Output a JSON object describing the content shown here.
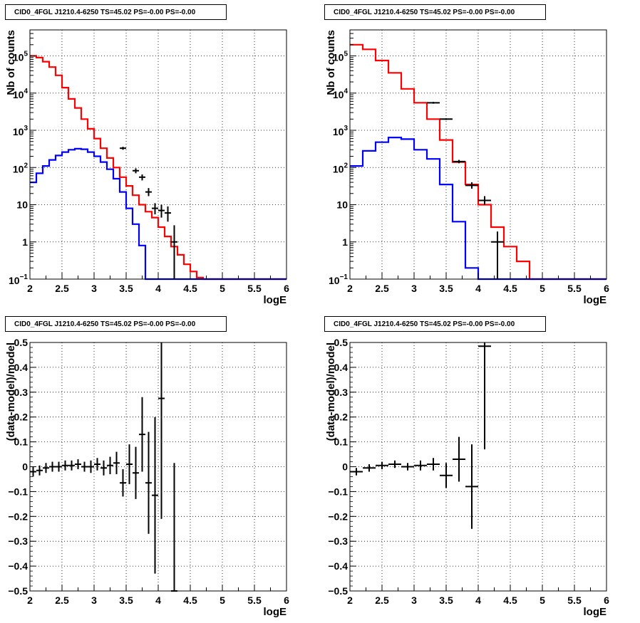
{
  "panel_title": "CID0_4FGL J1210.4-6250 TS=45.02 PS=-0.00 PS=-0.00",
  "colors": {
    "data": "#000000",
    "total_model": "#ff0000",
    "source_model": "#0000ff"
  },
  "chart_data": [
    {
      "type": "histogram",
      "title": "CID0_4FGL J1210.4-6250 TS=45.02 PS=-0.00 PS=-0.00",
      "xlabel": "logE",
      "ylabel": "Nb of counts",
      "xlim": [
        2,
        6
      ],
      "ylim": [
        0.1,
        500000
      ],
      "yscale": "log",
      "grid": true,
      "xticks": [
        "2",
        "2.5",
        "3",
        "3.5",
        "4",
        "4.5",
        "5",
        "5.5",
        "6"
      ],
      "yticks": [
        {
          "value": 0.1,
          "label": "10",
          "exp": "−1"
        },
        {
          "value": 1,
          "label": "1",
          "exp": ""
        },
        {
          "value": 10,
          "label": "10",
          "exp": ""
        },
        {
          "value": 100,
          "label": "10",
          "exp": "2"
        },
        {
          "value": 1000,
          "label": "10",
          "exp": "3"
        },
        {
          "value": 10000,
          "label": "10",
          "exp": "4"
        },
        {
          "value": 100000,
          "label": "10",
          "exp": "5"
        }
      ],
      "bin_edges_from": 2,
      "bin_width": 0.1,
      "series": [
        {
          "role": "total_model",
          "values": [
            100000,
            90000,
            70000,
            50000,
            30000,
            14000,
            7000,
            4000,
            2000,
            1100,
            600,
            330,
            180,
            100,
            55,
            32,
            18,
            10,
            6.5,
            4.5,
            2.5,
            1.4,
            0.75,
            0.45,
            0.25,
            0.16,
            0.11,
            0.1,
            0.1,
            0.1,
            0.1,
            0.1,
            0.1,
            0.1,
            0.1,
            0.1,
            0.1,
            0.1,
            0.1,
            0.1
          ]
        },
        {
          "role": "source_model",
          "values": [
            40,
            70,
            110,
            160,
            210,
            260,
            300,
            320,
            310,
            260,
            200,
            140,
            90,
            50,
            22,
            8,
            3,
            0.8,
            0.1,
            0.1,
            0.1,
            0.1,
            0.1,
            0.1,
            0.1,
            0.1,
            0.1,
            0.1,
            0.1,
            0.1,
            0.1,
            0.1,
            0.1,
            0.1,
            0.1,
            0.1,
            0.1,
            0.1,
            0.1,
            0.1
          ]
        }
      ],
      "data_points": [
        {
          "x": 3.45,
          "y": 330,
          "xerr": 0.05,
          "ylo": 300,
          "yhi": 360
        },
        {
          "x": 3.65,
          "y": 82,
          "xerr": 0.05,
          "ylo": 70,
          "yhi": 95
        },
        {
          "x": 3.75,
          "y": 55,
          "xerr": 0.05,
          "ylo": 45,
          "yhi": 65
        },
        {
          "x": 3.85,
          "y": 22,
          "xerr": 0.05,
          "ylo": 17,
          "yhi": 28
        },
        {
          "x": 3.95,
          "y": 8,
          "xerr": 0.05,
          "ylo": 5.5,
          "yhi": 11
        },
        {
          "x": 4.05,
          "y": 7,
          "xerr": 0.05,
          "ylo": 4.5,
          "yhi": 10
        },
        {
          "x": 4.15,
          "y": 6,
          "xerr": 0.05,
          "ylo": 3.5,
          "yhi": 9
        },
        {
          "x": 4.25,
          "y": 1,
          "xerr": 0.05,
          "ylo": 0.1,
          "yhi": 2.8
        }
      ]
    },
    {
      "type": "histogram",
      "title": "CID0_4FGL J1210.4-6250 TS=45.02 PS=-0.00 PS=-0.00",
      "xlabel": "logE",
      "ylabel": "Nb of counts",
      "xlim": [
        2,
        6
      ],
      "ylim": [
        0.1,
        500000
      ],
      "yscale": "log",
      "grid": true,
      "xticks": [
        "2",
        "2.5",
        "3",
        "3.5",
        "4",
        "4.5",
        "5",
        "5.5",
        "6"
      ],
      "yticks": [
        {
          "value": 0.1,
          "label": "10",
          "exp": "−1"
        },
        {
          "value": 1,
          "label": "1",
          "exp": ""
        },
        {
          "value": 10,
          "label": "10",
          "exp": ""
        },
        {
          "value": 100,
          "label": "10",
          "exp": "2"
        },
        {
          "value": 1000,
          "label": "10",
          "exp": "3"
        },
        {
          "value": 10000,
          "label": "10",
          "exp": "4"
        },
        {
          "value": 100000,
          "label": "10",
          "exp": "5"
        }
      ],
      "bin_edges_from": 2,
      "bin_width": 0.2,
      "series": [
        {
          "role": "total_model",
          "values": [
            200000,
            150000,
            75000,
            35000,
            13000,
            5500,
            2000,
            550,
            140,
            35,
            10,
            2.5,
            0.75,
            0.3,
            0.1,
            0.1,
            0.1,
            0.1,
            0.1,
            0.1
          ]
        },
        {
          "role": "source_model",
          "values": [
            110,
            280,
            480,
            640,
            580,
            300,
            170,
            35,
            3.5,
            0.2,
            0.1,
            0.1,
            0.1,
            0.1,
            0.1,
            0.1,
            0.1,
            0.1,
            0.1,
            0.1
          ]
        }
      ],
      "data_points": [
        {
          "x": 3.3,
          "y": 5500,
          "xerr": 0.1,
          "ylo": 5200,
          "yhi": 5800
        },
        {
          "x": 3.5,
          "y": 2000,
          "xerr": 0.1,
          "ylo": 1900,
          "yhi": 2100
        },
        {
          "x": 3.7,
          "y": 145,
          "xerr": 0.1,
          "ylo": 130,
          "yhi": 160
        },
        {
          "x": 3.9,
          "y": 33,
          "xerr": 0.1,
          "ylo": 27,
          "yhi": 40
        },
        {
          "x": 4.1,
          "y": 13,
          "xerr": 0.1,
          "ylo": 10,
          "yhi": 17
        },
        {
          "x": 4.3,
          "y": 1,
          "xerr": 0.1,
          "ylo": 0.1,
          "yhi": 1.9
        }
      ]
    },
    {
      "type": "scatter",
      "title": "CID0_4FGL J1210.4-6250 TS=45.02 PS=-0.00 PS=-0.00",
      "xlabel": "logE",
      "ylabel": "(data-model)/model",
      "xlim": [
        2,
        6
      ],
      "ylim": [
        -0.5,
        0.5
      ],
      "yscale": "linear",
      "grid": true,
      "xticks": [
        "2",
        "2.5",
        "3",
        "3.5",
        "4",
        "4.5",
        "5",
        "5.5",
        "6"
      ],
      "yticks": [
        {
          "value": -0.5,
          "label": "−0.5"
        },
        {
          "value": -0.4,
          "label": "−0.4"
        },
        {
          "value": -0.3,
          "label": "−0.3"
        },
        {
          "value": -0.2,
          "label": "−0.2"
        },
        {
          "value": -0.1,
          "label": "−0.1"
        },
        {
          "value": 0,
          "label": "0"
        },
        {
          "value": 0.1,
          "label": "0.1"
        },
        {
          "value": 0.2,
          "label": "0.2"
        },
        {
          "value": 0.3,
          "label": "0.3"
        },
        {
          "value": 0.4,
          "label": "0.4"
        },
        {
          "value": 0.5,
          "label": "0.5"
        }
      ],
      "data_points": [
        {
          "x": 2.05,
          "y": -0.02,
          "xerr": 0.05,
          "ylo": -0.04,
          "yhi": 0.0
        },
        {
          "x": 2.15,
          "y": -0.015,
          "xerr": 0.05,
          "ylo": -0.035,
          "yhi": 0.005
        },
        {
          "x": 2.25,
          "y": -0.005,
          "xerr": 0.05,
          "ylo": -0.025,
          "yhi": 0.015
        },
        {
          "x": 2.35,
          "y": 0.0,
          "xerr": 0.05,
          "ylo": -0.02,
          "yhi": 0.02
        },
        {
          "x": 2.45,
          "y": 0.0,
          "xerr": 0.05,
          "ylo": -0.02,
          "yhi": 0.02
        },
        {
          "x": 2.55,
          "y": 0.005,
          "xerr": 0.05,
          "ylo": -0.015,
          "yhi": 0.025
        },
        {
          "x": 2.65,
          "y": 0.005,
          "xerr": 0.05,
          "ylo": -0.015,
          "yhi": 0.025
        },
        {
          "x": 2.75,
          "y": 0.01,
          "xerr": 0.05,
          "ylo": -0.01,
          "yhi": 0.03
        },
        {
          "x": 2.85,
          "y": 0.0,
          "xerr": 0.05,
          "ylo": -0.02,
          "yhi": 0.02
        },
        {
          "x": 2.95,
          "y": 0.0,
          "xerr": 0.05,
          "ylo": -0.025,
          "yhi": 0.025
        },
        {
          "x": 3.05,
          "y": 0.01,
          "xerr": 0.05,
          "ylo": -0.015,
          "yhi": 0.035
        },
        {
          "x": 3.15,
          "y": -0.005,
          "xerr": 0.05,
          "ylo": -0.035,
          "yhi": 0.025
        },
        {
          "x": 3.25,
          "y": 0.005,
          "xerr": 0.05,
          "ylo": -0.03,
          "yhi": 0.04
        },
        {
          "x": 3.35,
          "y": 0.015,
          "xerr": 0.05,
          "ylo": -0.03,
          "yhi": 0.06
        },
        {
          "x": 3.45,
          "y": -0.065,
          "xerr": 0.05,
          "ylo": -0.12,
          "yhi": -0.01
        },
        {
          "x": 3.55,
          "y": 0.01,
          "xerr": 0.05,
          "ylo": -0.07,
          "yhi": 0.09
        },
        {
          "x": 3.65,
          "y": -0.025,
          "xerr": 0.05,
          "ylo": -0.13,
          "yhi": 0.08
        },
        {
          "x": 3.75,
          "y": 0.13,
          "xerr": 0.05,
          "ylo": -0.02,
          "yhi": 0.28
        },
        {
          "x": 3.85,
          "y": -0.065,
          "xerr": 0.05,
          "ylo": -0.27,
          "yhi": 0.14
        },
        {
          "x": 3.95,
          "y": -0.115,
          "xerr": 0.05,
          "ylo": -0.43,
          "yhi": 0.2
        },
        {
          "x": 4.05,
          "y": 0.275,
          "xerr": 0.05,
          "ylo": -0.21,
          "yhi": 0.5
        },
        {
          "x": 4.25,
          "y": -0.5,
          "xerr": 0.05,
          "ylo": -0.5,
          "yhi": 0.015
        }
      ]
    },
    {
      "type": "scatter",
      "title": "CID0_4FGL J1210.4-6250 TS=45.02 PS=-0.00 PS=-0.00",
      "xlabel": "logE",
      "ylabel": "(data-model)/model",
      "xlim": [
        2,
        6
      ],
      "ylim": [
        -0.5,
        0.5
      ],
      "yscale": "linear",
      "grid": true,
      "xticks": [
        "2",
        "2.5",
        "3",
        "3.5",
        "4",
        "4.5",
        "5",
        "5.5",
        "6"
      ],
      "yticks": [
        {
          "value": -0.5,
          "label": "−0.5"
        },
        {
          "value": -0.4,
          "label": "−0.4"
        },
        {
          "value": -0.3,
          "label": "−0.3"
        },
        {
          "value": -0.2,
          "label": "−0.2"
        },
        {
          "value": -0.1,
          "label": "−0.1"
        },
        {
          "value": 0,
          "label": "0"
        },
        {
          "value": 0.1,
          "label": "0.1"
        },
        {
          "value": 0.2,
          "label": "0.2"
        },
        {
          "value": 0.3,
          "label": "0.3"
        },
        {
          "value": 0.4,
          "label": "0.4"
        },
        {
          "value": 0.5,
          "label": "0.5"
        }
      ],
      "data_points": [
        {
          "x": 2.1,
          "y": -0.02,
          "xerr": 0.1,
          "ylo": -0.035,
          "yhi": -0.005
        },
        {
          "x": 2.3,
          "y": -0.005,
          "xerr": 0.1,
          "ylo": -0.02,
          "yhi": 0.01
        },
        {
          "x": 2.5,
          "y": 0.005,
          "xerr": 0.1,
          "ylo": -0.01,
          "yhi": 0.02
        },
        {
          "x": 2.7,
          "y": 0.01,
          "xerr": 0.1,
          "ylo": -0.005,
          "yhi": 0.025
        },
        {
          "x": 2.9,
          "y": 0.0,
          "xerr": 0.1,
          "ylo": -0.015,
          "yhi": 0.015
        },
        {
          "x": 3.1,
          "y": 0.005,
          "xerr": 0.1,
          "ylo": -0.015,
          "yhi": 0.025
        },
        {
          "x": 3.3,
          "y": 0.01,
          "xerr": 0.1,
          "ylo": -0.015,
          "yhi": 0.035
        },
        {
          "x": 3.5,
          "y": -0.035,
          "xerr": 0.1,
          "ylo": -0.085,
          "yhi": 0.015
        },
        {
          "x": 3.7,
          "y": 0.03,
          "xerr": 0.1,
          "ylo": -0.06,
          "yhi": 0.12
        },
        {
          "x": 3.9,
          "y": -0.08,
          "xerr": 0.1,
          "ylo": -0.25,
          "yhi": 0.09
        },
        {
          "x": 4.1,
          "y": 0.485,
          "xerr": 0.1,
          "ylo": 0.07,
          "yhi": 0.5
        }
      ]
    }
  ]
}
